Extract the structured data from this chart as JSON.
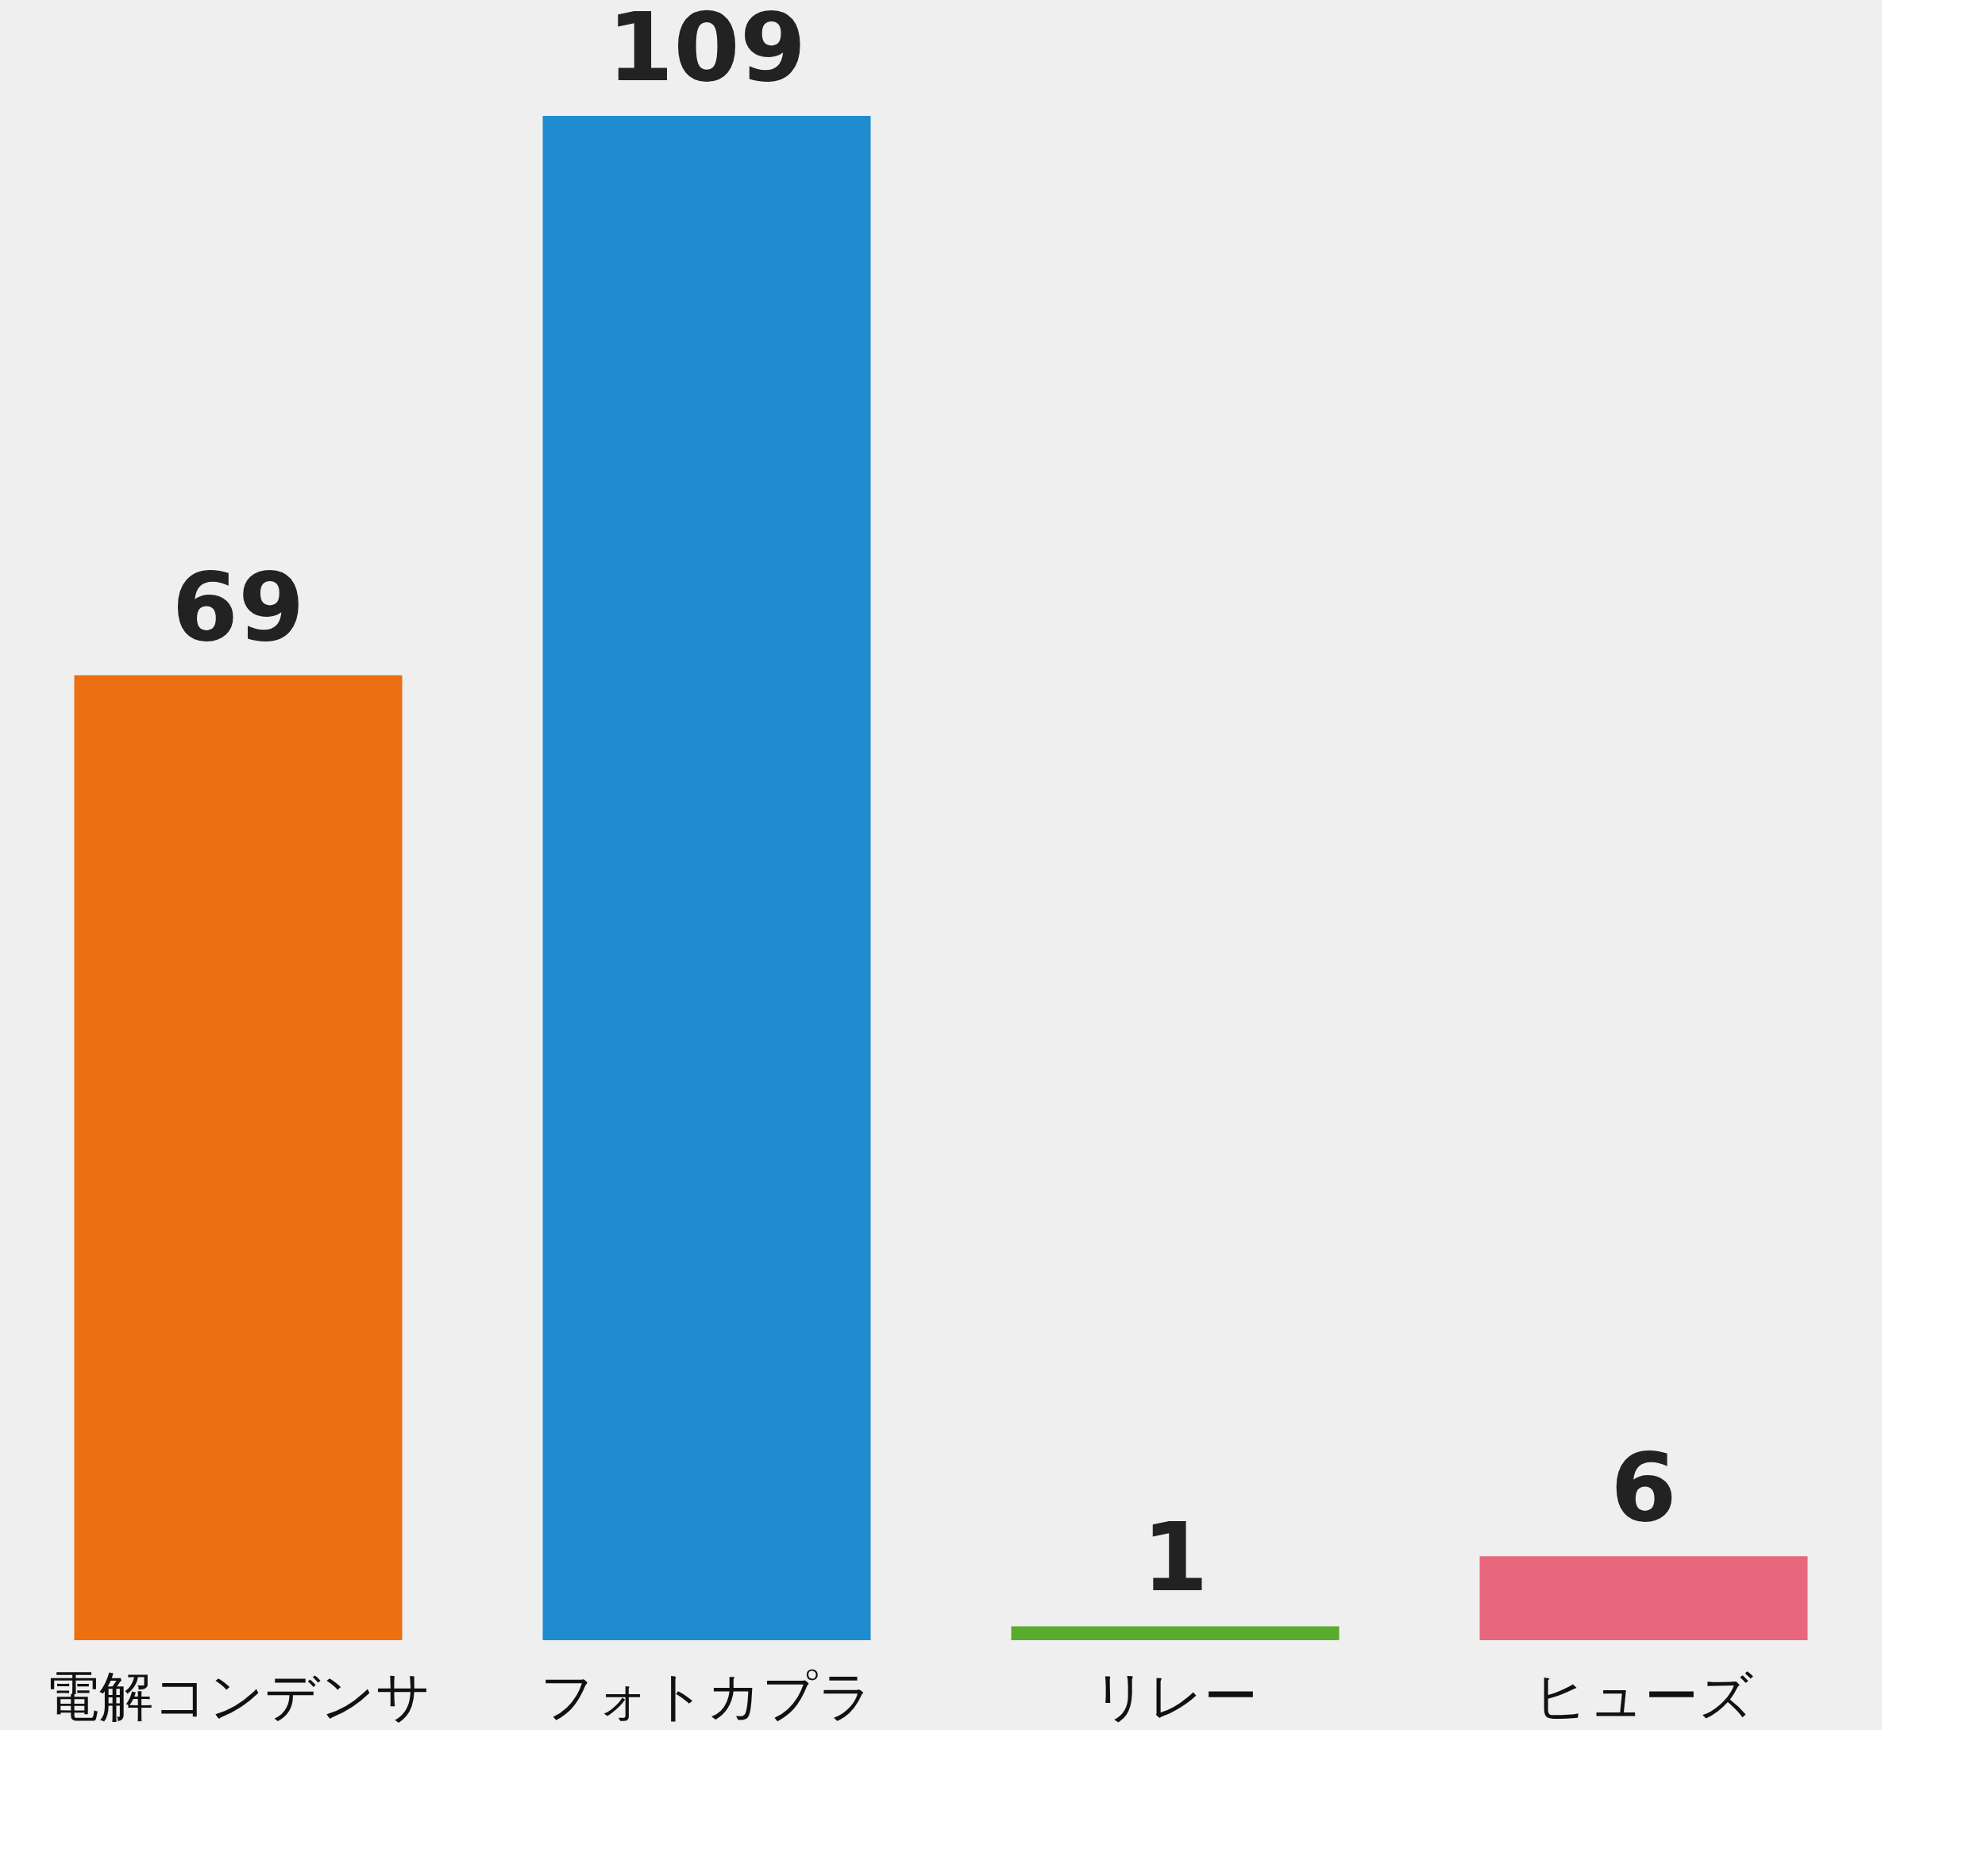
{
  "chart_data": {
    "type": "bar",
    "categories": [
      "電解コンデンサ",
      "フォトカプラ",
      "リレー",
      "ヒューズ"
    ],
    "values": [
      69,
      109,
      1,
      6
    ],
    "colors": [
      "#ec7012",
      "#1f8ccf",
      "#5aaa2e",
      "#e9677c"
    ],
    "data_labels": true
  }
}
